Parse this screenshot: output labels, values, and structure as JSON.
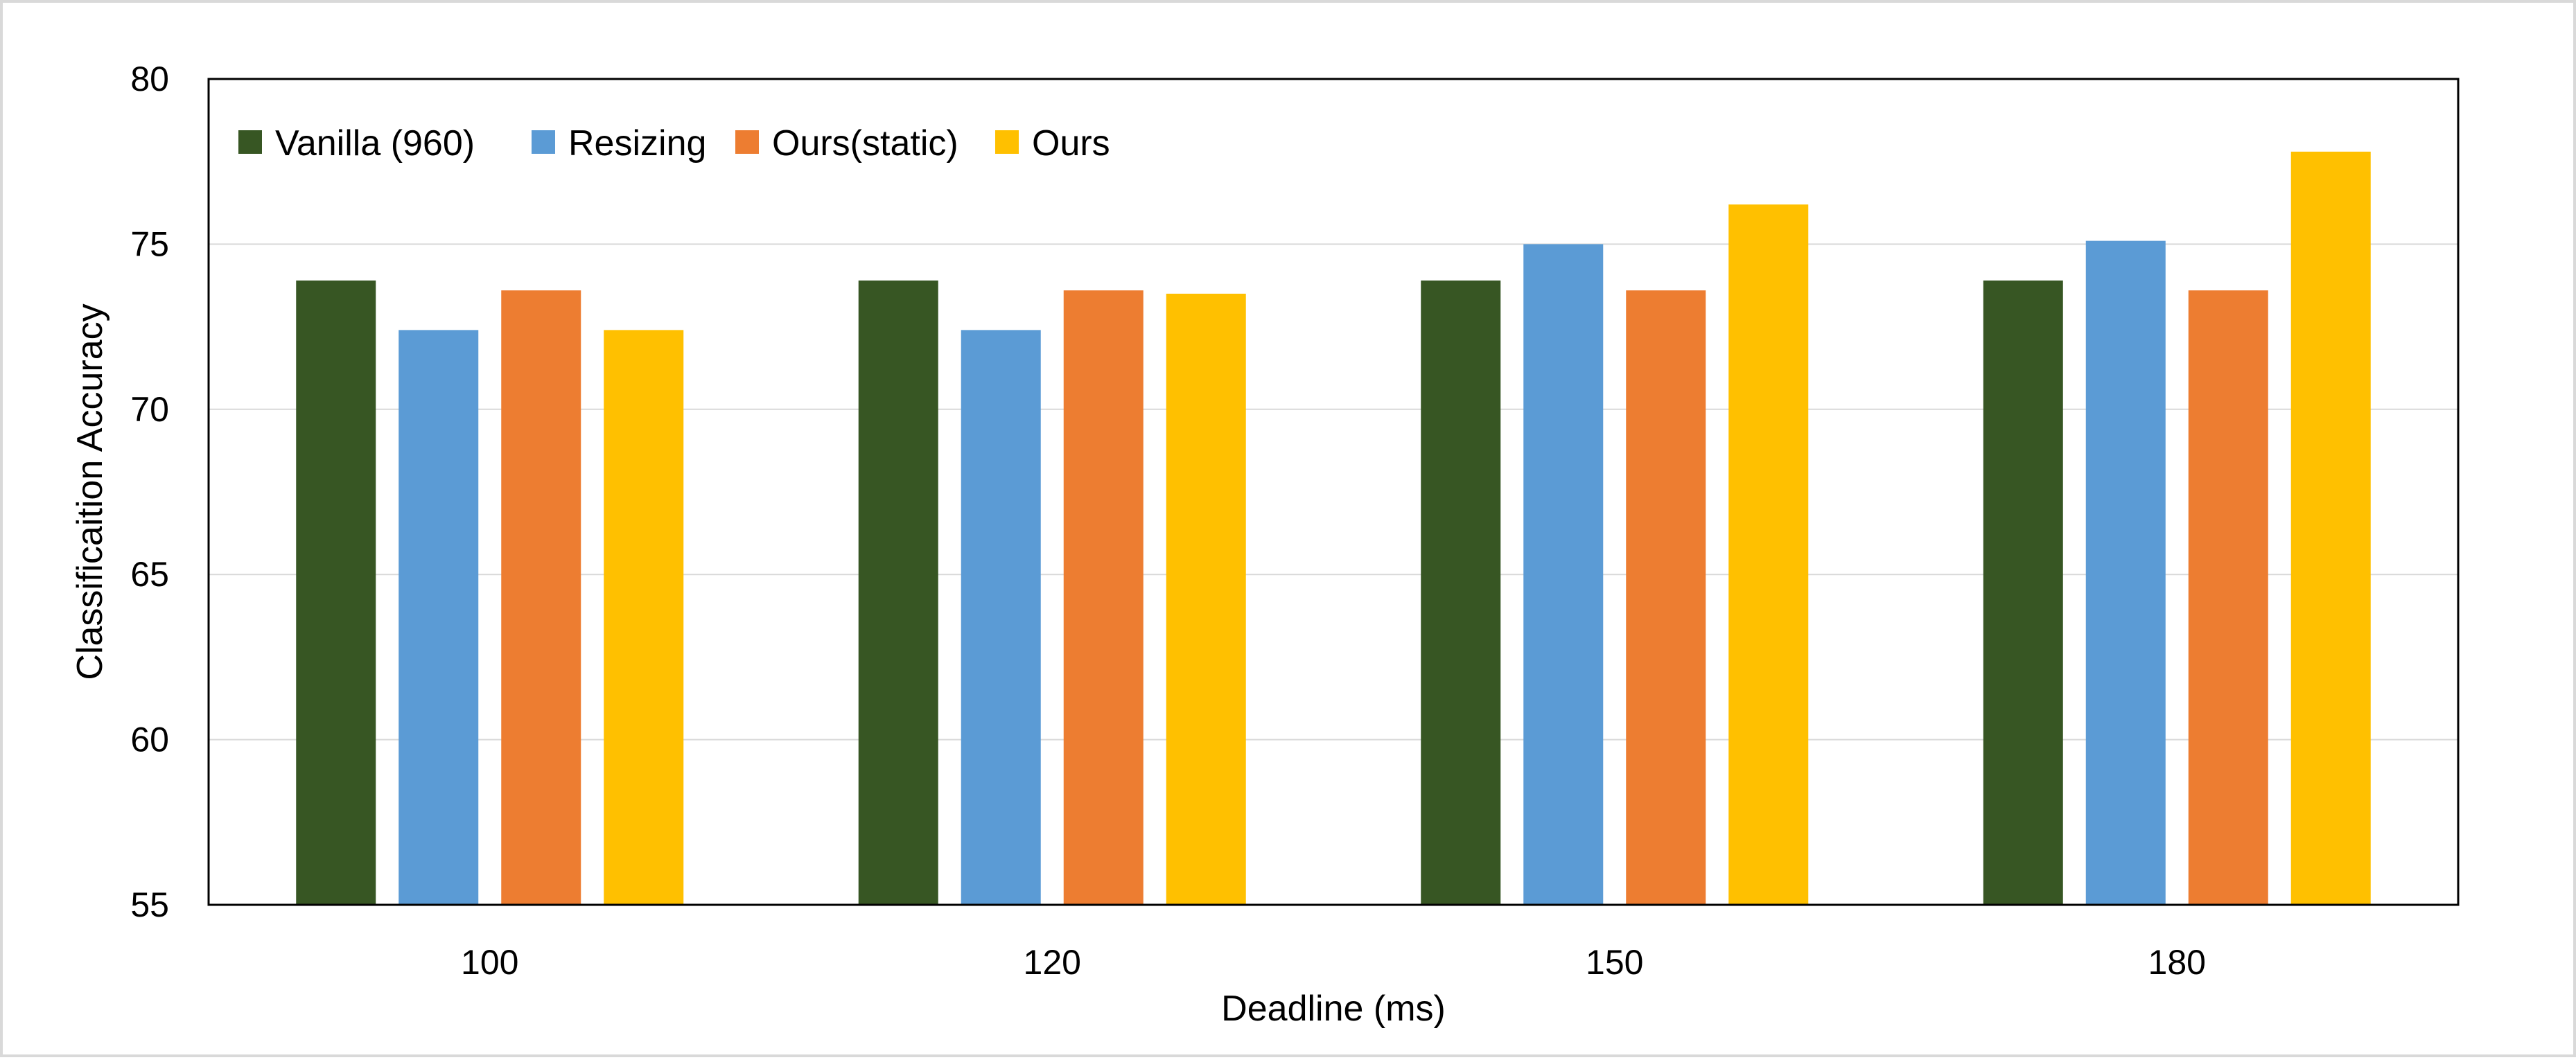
{
  "chart_data": {
    "type": "bar",
    "categories": [
      "100",
      "120",
      "150",
      "180"
    ],
    "series": [
      {
        "name": "Vanilla (960)",
        "color": "#375623",
        "values": [
          73.9,
          73.9,
          73.9,
          73.9
        ]
      },
      {
        "name": "Resizing",
        "color": "#5b9bd5",
        "values": [
          72.4,
          72.4,
          75.0,
          75.1
        ]
      },
      {
        "name": "Ours(static)",
        "color": "#ed7d31",
        "values": [
          73.6,
          73.6,
          73.6,
          73.6
        ]
      },
      {
        "name": "Ours",
        "color": "#ffc000",
        "values": [
          72.4,
          73.5,
          76.2,
          77.8
        ]
      }
    ],
    "title": "",
    "xlabel": "Deadline (ms)",
    "ylabel": "Classificaition Accuracy",
    "ylim": [
      55,
      80
    ],
    "yticks": [
      55,
      60,
      65,
      70,
      75,
      80
    ],
    "grid": true,
    "legend_position": "top-left"
  }
}
